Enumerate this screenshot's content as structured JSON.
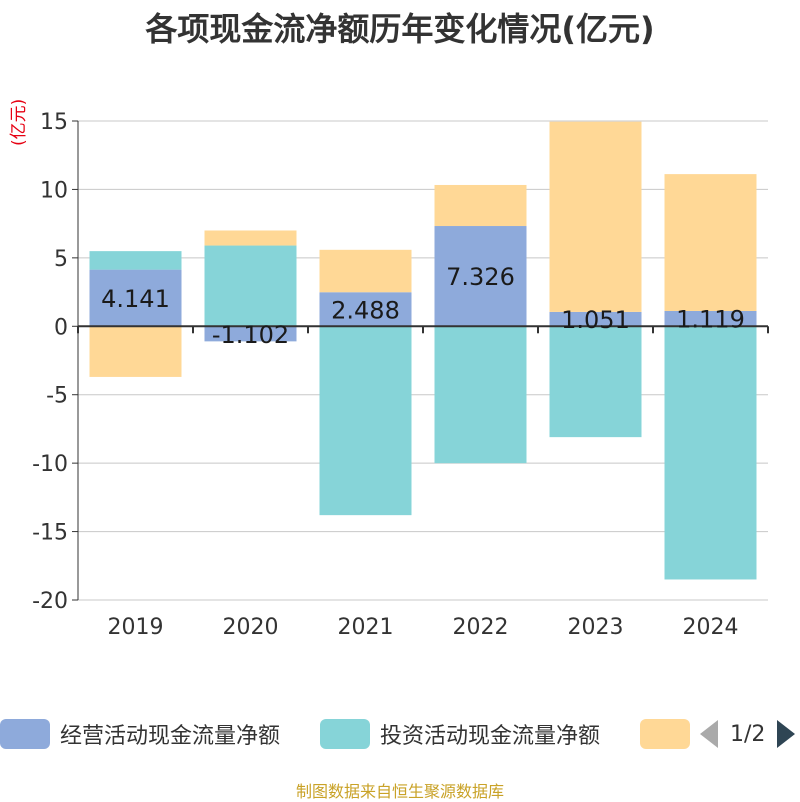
{
  "chart_data": {
    "type": "bar",
    "stacked": true,
    "title": "各项现金流净额历年变化情况(亿元)",
    "ylabel": "(亿元)",
    "categories": [
      "2019",
      "2020",
      "2021",
      "2022",
      "2023",
      "2024"
    ],
    "ylim": [
      -20,
      15
    ],
    "yticks": [
      15,
      10,
      5,
      0,
      -5,
      -10,
      -15,
      -20
    ],
    "series": [
      {
        "name": "经营活动现金流量净额",
        "color": "#8eaadb",
        "values": [
          4.141,
          -1.102,
          2.488,
          7.326,
          1.051,
          1.119
        ]
      },
      {
        "name": "投资活动现金流量净额",
        "color": "#86d4d8",
        "values": [
          1.35,
          5.9,
          -13.8,
          -10.0,
          -8.1,
          -18.5
        ]
      },
      {
        "name": "",
        "color": "#ffd896",
        "values": [
          -3.7,
          1.1,
          3.1,
          3.0,
          13.9,
          10.0
        ]
      }
    ],
    "data_labels": [
      "4.141",
      "-1.102",
      "2.488",
      "7.326",
      "1.051",
      "1.119"
    ]
  },
  "legend": {
    "items": [
      {
        "label": "经营活动现金流量净额",
        "color": "#8eaadb"
      },
      {
        "label": "投资活动现金流量净额",
        "color": "#86d4d8"
      },
      {
        "label": "",
        "color": "#ffd896"
      }
    ],
    "page": "1/2"
  },
  "source": "制图数据来自恒生聚源数据库"
}
